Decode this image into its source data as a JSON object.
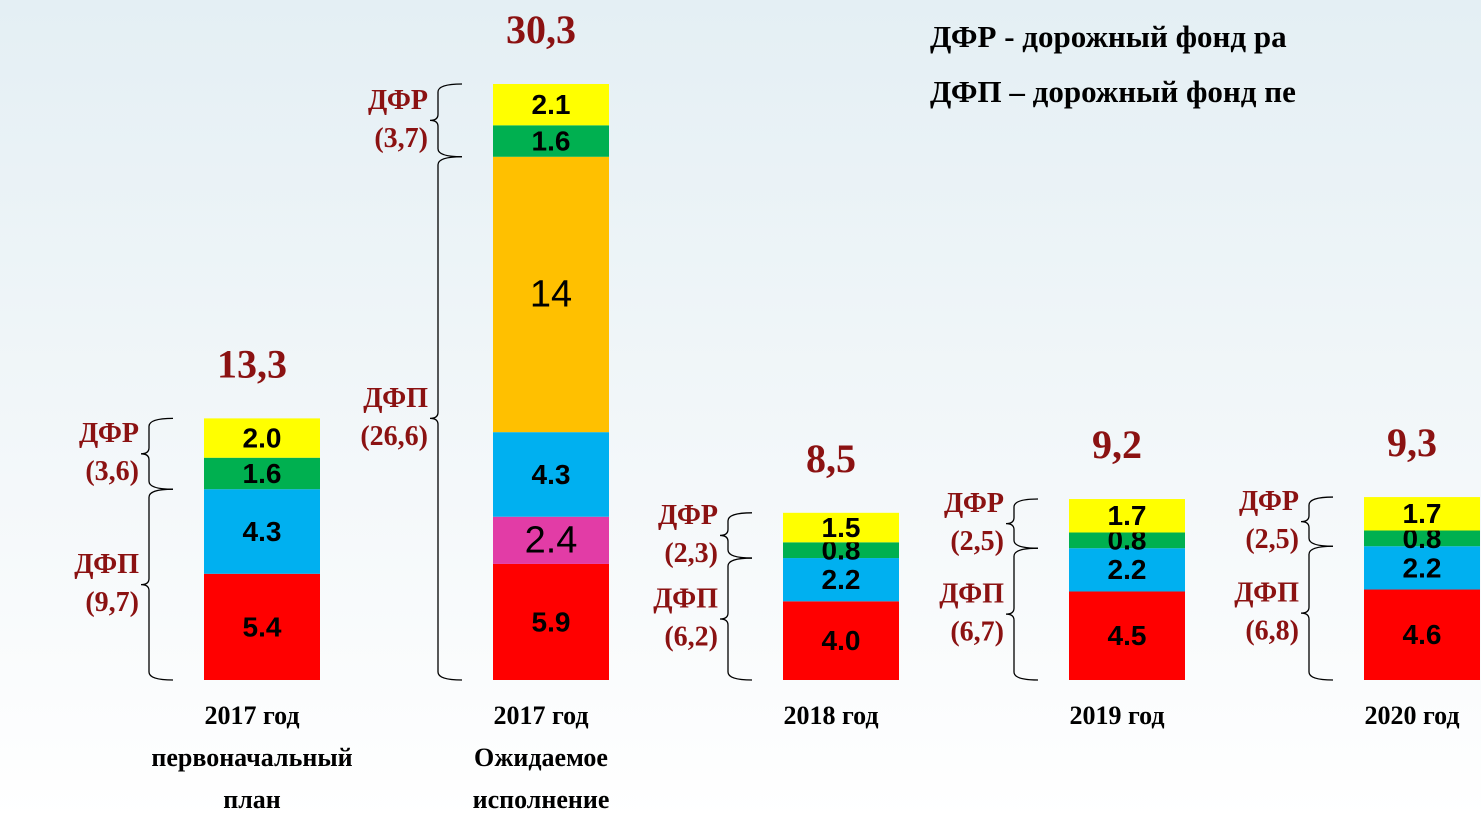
{
  "chart_data": {
    "type": "stacked-bar",
    "legend_lines": [
      "ДФР -  дорожный фонд ра",
      "ДФП – дорожный фонд пе"
    ],
    "categories": [
      [
        "2017 год",
        "первоначальный",
        "план"
      ],
      [
        "2017 год",
        "Ожидаемое",
        "исполнение"
      ],
      [
        "2018 год"
      ],
      [
        "2019 год"
      ],
      [
        "2020 год"
      ]
    ],
    "series": [
      {
        "color": "#ff0000",
        "values": [
          5.4,
          5.9,
          4.0,
          4.5,
          4.6
        ],
        "value_labels": [
          "5.4",
          "5.9",
          "4.0",
          "4.5",
          "4.6"
        ]
      },
      {
        "color": "#e23ca6",
        "values": [
          null,
          2.4,
          null,
          null,
          null
        ],
        "value_labels": [
          null,
          "2.4",
          null,
          null,
          null
        ]
      },
      {
        "color": "#00b0f0",
        "values": [
          4.3,
          4.3,
          2.2,
          2.2,
          2.2
        ],
        "value_labels": [
          "4.3",
          "4.3",
          "2.2",
          "2.2",
          "2.2"
        ]
      },
      {
        "color": "#ffc000",
        "values": [
          null,
          14,
          null,
          null,
          null
        ]
      },
      {
        "color": "#00b050",
        "values": [
          1.6,
          1.6,
          0.8,
          0.8,
          0.8
        ],
        "value_labels": [
          "1.6",
          "1.6",
          "0.8",
          "0.8",
          "0.8"
        ]
      },
      {
        "color": "#ffff00",
        "values": [
          2.0,
          2.1,
          1.5,
          1.7,
          1.7
        ],
        "value_labels": [
          "2.0",
          "2.1",
          "1.5",
          "1.7",
          "1.7"
        ]
      }
    ],
    "totals": [
      13.3,
      30.3,
      8.5,
      9.2,
      9.3
    ],
    "total_labels": [
      "13,3",
      "30,3",
      "8,5",
      "9,2",
      "9,3"
    ],
    "groups": [
      {
        "name": "ДФП",
        "values": [
          9.7,
          26.6,
          6.2,
          6.7,
          6.8
        ],
        "value_labels": [
          "(9,7)",
          "(26,6)",
          "(6,2)",
          "(6,7)",
          "(6,8)"
        ]
      },
      {
        "name": "ДФР",
        "values": [
          3.6,
          3.7,
          2.3,
          2.5,
          2.5
        ],
        "value_labels": [
          "(3,6)",
          "(3,7)",
          "(2,3)",
          "(2,5)",
          "(2,5)"
        ]
      }
    ]
  }
}
